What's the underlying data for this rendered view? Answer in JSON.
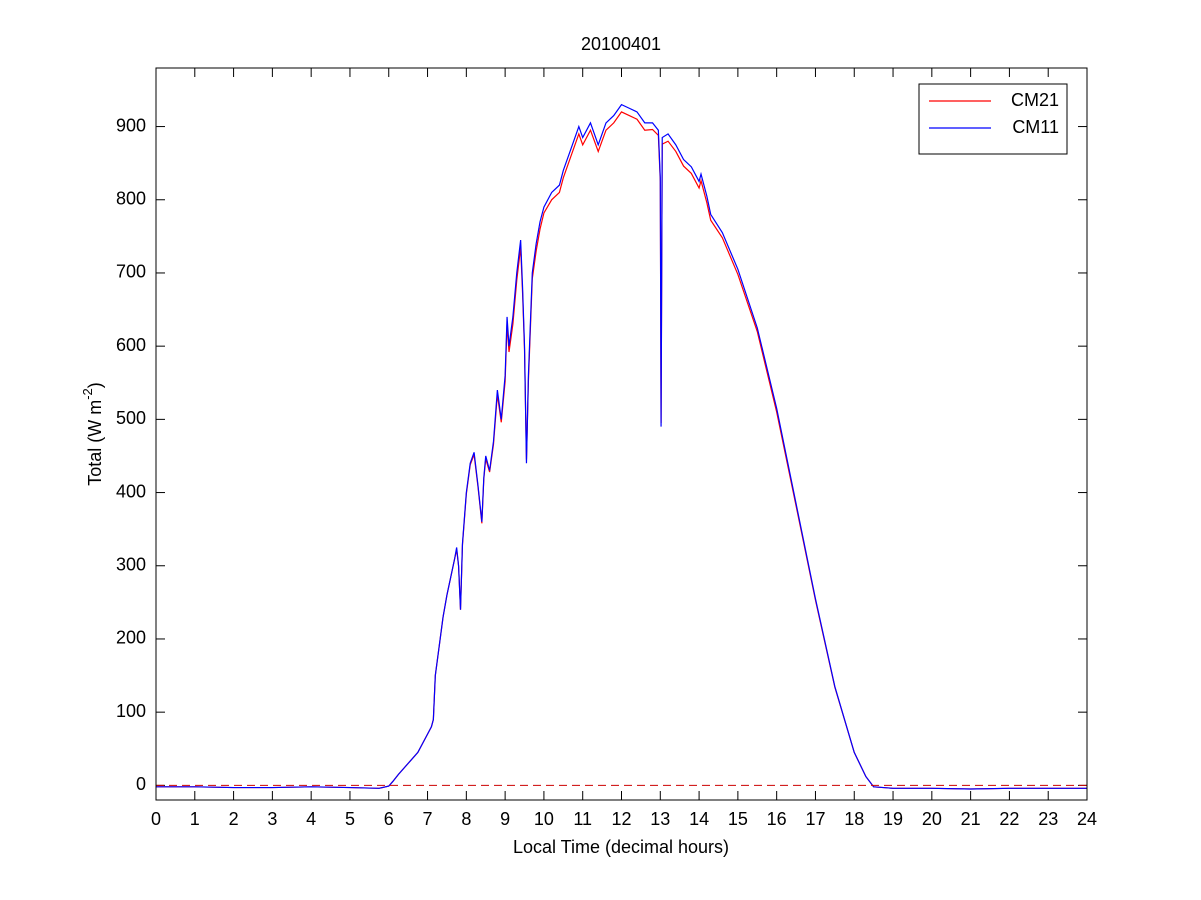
{
  "chart_data": {
    "type": "line",
    "title": "20100401",
    "xlabel": "Local Time (decimal hours)",
    "ylabel": "Total (W m",
    "ylabel_sup": "-2",
    "ylabel_end": ")",
    "xlim": [
      0,
      24
    ],
    "xticks": [
      0,
      1,
      2,
      3,
      4,
      5,
      6,
      7,
      8,
      9,
      10,
      11,
      12,
      13,
      14,
      15,
      16,
      17,
      18,
      19,
      20,
      21,
      22,
      23,
      24
    ],
    "ylim": [
      -20,
      980
    ],
    "yticks": [
      0,
      100,
      200,
      300,
      400,
      500,
      600,
      700,
      800,
      900
    ],
    "grid": false,
    "legend": "northeast",
    "hline": {
      "value": 0,
      "color": "#cc0000"
    },
    "x": [
      0,
      1,
      2,
      3,
      4,
      5,
      5.75,
      6,
      6.1,
      6.25,
      6.5,
      6.75,
      7,
      7.1,
      7.15,
      7.2,
      7.3,
      7.4,
      7.5,
      7.6,
      7.7,
      7.75,
      7.8,
      7.85,
      7.9,
      8,
      8.1,
      8.2,
      8.3,
      8.4,
      8.45,
      8.5,
      8.6,
      8.7,
      8.8,
      8.9,
      9,
      9.05,
      9.1,
      9.2,
      9.3,
      9.4,
      9.45,
      9.5,
      9.55,
      9.6,
      9.7,
      9.8,
      9.9,
      10,
      10.2,
      10.4,
      10.5,
      10.7,
      10.9,
      11,
      11.2,
      11.4,
      11.6,
      11.8,
      12,
      12.2,
      12.4,
      12.6,
      12.8,
      12.95,
      13,
      13.02,
      13.05,
      13.2,
      13.4,
      13.6,
      13.8,
      14,
      14.05,
      14.2,
      14.3,
      14.6,
      15,
      15.5,
      16,
      16.5,
      17,
      17.5,
      18,
      18.3,
      18.5,
      19,
      20,
      21,
      22,
      23,
      24
    ],
    "series": [
      {
        "name": "CM21",
        "color": "#ff0000",
        "values": [
          -2,
          -2,
          -3,
          -3,
          -2,
          -3,
          -4,
          -1,
          5,
          15,
          30,
          45,
          70,
          80,
          90,
          150,
          190,
          230,
          260,
          285,
          310,
          322,
          300,
          240,
          328,
          398,
          438,
          452,
          408,
          358,
          418,
          446,
          428,
          466,
          534,
          496,
          552,
          630,
          592,
          630,
          690,
          735,
          672,
          595,
          445,
          552,
          692,
          730,
          760,
          782,
          800,
          810,
          830,
          860,
          890,
          875,
          895,
          866,
          895,
          905,
          920,
          915,
          910,
          895,
          896,
          888,
          825,
          495,
          876,
          880,
          866,
          846,
          836,
          816,
          826,
          796,
          772,
          748,
          698,
          620,
          510,
          382,
          253,
          134,
          45,
          12,
          -2,
          -4,
          -4,
          -5,
          -4,
          -4,
          -4
        ]
      },
      {
        "name": "CM11",
        "color": "#0000ff",
        "values": [
          -2,
          -2,
          -3,
          -3,
          -2,
          -3,
          -4,
          -1,
          5,
          15,
          30,
          45,
          70,
          80,
          90,
          150,
          190,
          230,
          260,
          285,
          310,
          325,
          300,
          240,
          330,
          400,
          440,
          455,
          410,
          360,
          420,
          450,
          430,
          470,
          540,
          500,
          560,
          640,
          600,
          640,
          700,
          745,
          680,
          600,
          440,
          560,
          700,
          740,
          770,
          790,
          810,
          820,
          840,
          870,
          900,
          885,
          905,
          875,
          905,
          915,
          930,
          925,
          920,
          905,
          905,
          895,
          830,
          490,
          885,
          890,
          875,
          855,
          845,
          825,
          835,
          805,
          780,
          755,
          705,
          625,
          515,
          385,
          255,
          135,
          45,
          12,
          -2,
          -4,
          -4,
          -5,
          -4,
          -4,
          -4
        ]
      }
    ]
  }
}
